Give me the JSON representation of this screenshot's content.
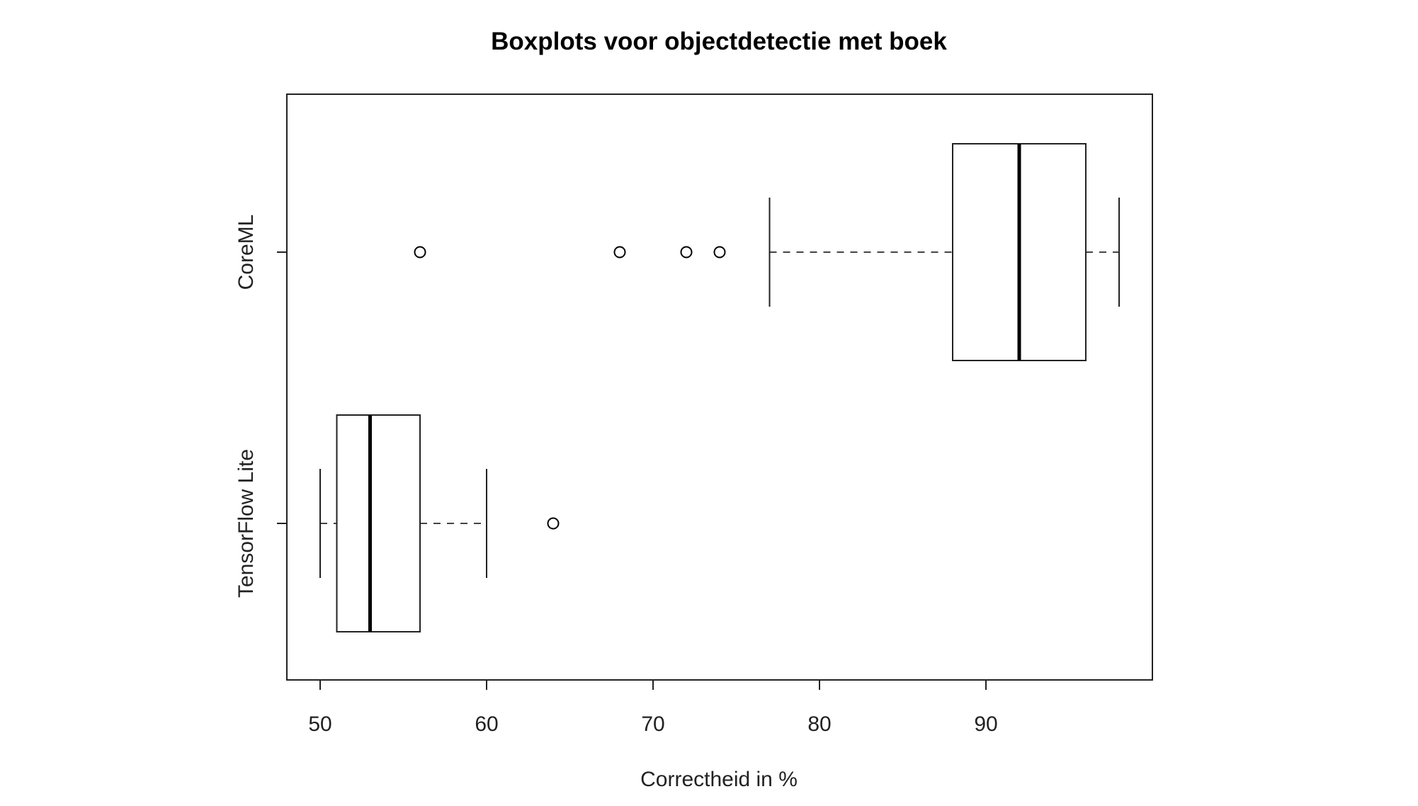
{
  "chart_data": {
    "type": "boxplot",
    "orientation": "horizontal",
    "title": "Boxplots voor objectdetectie met boek",
    "xlabel": "Correctheid in %",
    "ylabel": "",
    "xlim": [
      48,
      100
    ],
    "xticks": [
      50,
      60,
      70,
      80,
      90
    ],
    "grid": false,
    "series": [
      {
        "name": "CoreML",
        "whisker_low": 77,
        "q1": 88,
        "median": 92,
        "q3": 96,
        "whisker_high": 98,
        "outliers": [
          56,
          68,
          72,
          74
        ]
      },
      {
        "name": "TensorFlow Lite",
        "whisker_low": 50,
        "q1": 51,
        "median": 53,
        "q3": 56,
        "whisker_high": 60,
        "outliers": [
          64
        ]
      }
    ]
  }
}
